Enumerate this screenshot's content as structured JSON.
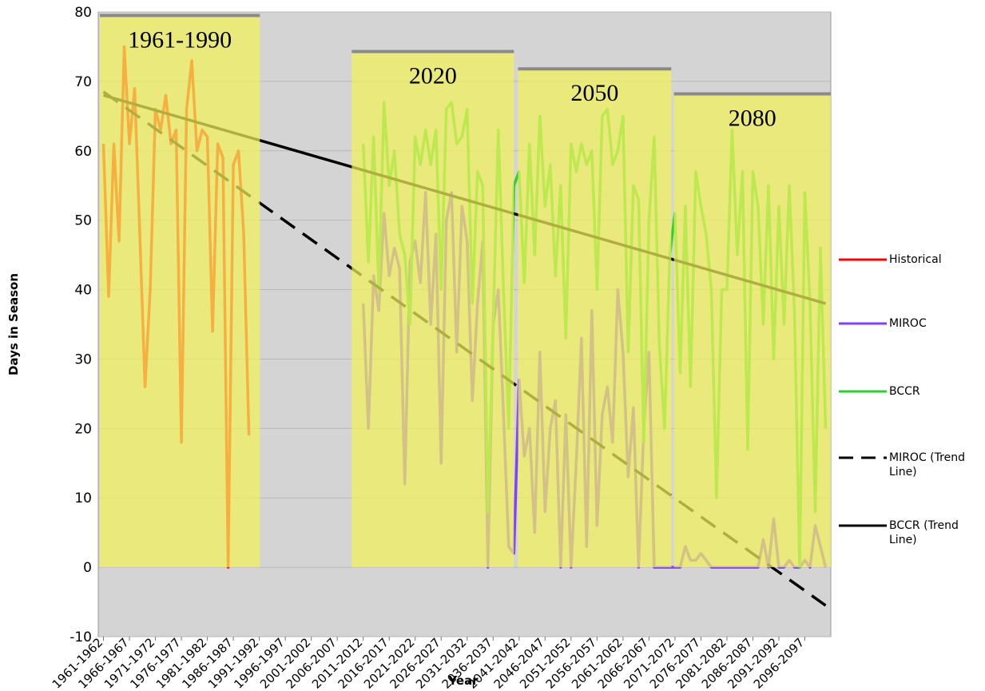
{
  "chart_data": {
    "type": "line",
    "xlabel": "Year",
    "ylabel": "Days in Season",
    "xlim": [
      1960,
      2101
    ],
    "ylim": [
      -10,
      80
    ],
    "yticks": [
      -10,
      0,
      10,
      20,
      30,
      40,
      50,
      60,
      70,
      80
    ],
    "xticks": [
      {
        "value": 1961,
        "label": "1961-1962"
      },
      {
        "value": 1966,
        "label": "1966-1967"
      },
      {
        "value": 1971,
        "label": "1971-1972"
      },
      {
        "value": 1976,
        "label": "1976-1977"
      },
      {
        "value": 1981,
        "label": "1981-1982"
      },
      {
        "value": 1986,
        "label": "1986-1987"
      },
      {
        "value": 1991,
        "label": "1991-1992"
      },
      {
        "value": 1996,
        "label": "1996-1997"
      },
      {
        "value": 2001,
        "label": "2001-2002"
      },
      {
        "value": 2006,
        "label": "2006-2007"
      },
      {
        "value": 2011,
        "label": "2011-2012"
      },
      {
        "value": 2016,
        "label": "2016-2017"
      },
      {
        "value": 2021,
        "label": "2021-2022"
      },
      {
        "value": 2026,
        "label": "2026-2027"
      },
      {
        "value": 2031,
        "label": "2031-2032"
      },
      {
        "value": 2036,
        "label": "2036-2037"
      },
      {
        "value": 2041,
        "label": "2041-2042"
      },
      {
        "value": 2046,
        "label": "2046-2047"
      },
      {
        "value": 2051,
        "label": "2051-2052"
      },
      {
        "value": 2056,
        "label": "2056-2057"
      },
      {
        "value": 2061,
        "label": "2061-2062"
      },
      {
        "value": 2066,
        "label": "2066-2067"
      },
      {
        "value": 2071,
        "label": "2071-2072"
      },
      {
        "value": 2076,
        "label": "2076-2077"
      },
      {
        "value": 2081,
        "label": "2081-2082"
      },
      {
        "value": 2086,
        "label": "2086-2087"
      },
      {
        "value": 2091,
        "label": "2091-2092"
      },
      {
        "value": 2096,
        "label": "2096-2097"
      }
    ],
    "grid": true,
    "legend": "right",
    "periods": [
      {
        "label": "1961-1990",
        "xrange": [
          1960.3,
          1991.1
        ],
        "top": 79.5
      },
      {
        "label": "2020",
        "xrange": [
          2008.8,
          2040
        ],
        "top": 74.3
      },
      {
        "label": "2050",
        "xrange": [
          2040.8,
          2070.3
        ],
        "top": 71.8
      },
      {
        "label": "2080",
        "xrange": [
          2070.8,
          2101
        ],
        "top": 68.2
      }
    ],
    "series": [
      {
        "name": "Historical",
        "color": "#ff0000",
        "dash": false,
        "x": [
          1961,
          1962,
          1963,
          1964,
          1965,
          1966,
          1967,
          1968,
          1969,
          1970,
          1971,
          1972,
          1973,
          1974,
          1975,
          1976,
          1977,
          1978,
          1979,
          1980,
          1981,
          1982,
          1983,
          1984,
          1985,
          1986,
          1987,
          1988,
          1989
        ],
        "values": [
          61,
          39,
          61,
          47,
          75,
          61,
          69,
          48,
          26,
          40,
          66,
          63,
          68,
          61,
          63,
          18,
          66,
          73,
          60,
          63,
          62,
          34,
          61,
          59,
          0,
          58,
          60,
          48,
          19
        ]
      },
      {
        "name": "MIROC",
        "color": "#8040ff",
        "dash": false,
        "x": [
          2011,
          2012,
          2013,
          2014,
          2015,
          2016,
          2017,
          2018,
          2019,
          2020,
          2021,
          2022,
          2023,
          2024,
          2025,
          2026,
          2027,
          2028,
          2029,
          2030,
          2031,
          2032,
          2033,
          2034,
          2035,
          2036,
          2037,
          2038,
          2039,
          2040,
          2041,
          2042,
          2043,
          2044,
          2045,
          2046,
          2047,
          2048,
          2049,
          2050,
          2051,
          2052,
          2053,
          2054,
          2055,
          2056,
          2057,
          2058,
          2059,
          2060,
          2061,
          2062,
          2063,
          2064,
          2065,
          2066,
          2067,
          2068,
          2069,
          2070,
          2071,
          2072,
          2073,
          2074,
          2075,
          2076,
          2077,
          2078,
          2079,
          2080,
          2081,
          2082,
          2083,
          2084,
          2085,
          2086,
          2087,
          2088,
          2089,
          2090,
          2091,
          2092,
          2093,
          2094,
          2095,
          2096,
          2097,
          2098,
          2099,
          2100
        ],
        "values": [
          38,
          20,
          42,
          37,
          51,
          42,
          46,
          43,
          12,
          44,
          47,
          41,
          54,
          35,
          48,
          15,
          50,
          54,
          31,
          52,
          47,
          24,
          38,
          47,
          0,
          35,
          40,
          22,
          3,
          2,
          27,
          16,
          20,
          5,
          31,
          8,
          20,
          24,
          0,
          22,
          0,
          15,
          33,
          3,
          37,
          6,
          22,
          26,
          18,
          40,
          31,
          13,
          23,
          0,
          20,
          31,
          0,
          0,
          0,
          0,
          0,
          0,
          3,
          1,
          1,
          2,
          1,
          0,
          0,
          0,
          0,
          0,
          0,
          0,
          0,
          0,
          0,
          4,
          0,
          7,
          0,
          0,
          1,
          0,
          0,
          1,
          0,
          6,
          3,
          0
        ]
      },
      {
        "name": "BCCR",
        "color": "#33cc33",
        "dash": false,
        "x": [
          2011,
          2012,
          2013,
          2014,
          2015,
          2016,
          2017,
          2018,
          2019,
          2020,
          2021,
          2022,
          2023,
          2024,
          2025,
          2026,
          2027,
          2028,
          2029,
          2030,
          2031,
          2032,
          2033,
          2034,
          2035,
          2036,
          2037,
          2038,
          2039,
          2040,
          2041,
          2042,
          2043,
          2044,
          2045,
          2046,
          2047,
          2048,
          2049,
          2050,
          2051,
          2052,
          2053,
          2054,
          2055,
          2056,
          2057,
          2058,
          2059,
          2060,
          2061,
          2062,
          2063,
          2064,
          2065,
          2066,
          2067,
          2068,
          2069,
          2070,
          2071,
          2072,
          2073,
          2074,
          2075,
          2076,
          2077,
          2078,
          2079,
          2080,
          2081,
          2082,
          2083,
          2084,
          2085,
          2086,
          2087,
          2088,
          2089,
          2090,
          2091,
          2092,
          2093,
          2094,
          2095,
          2096,
          2097,
          2098,
          2099,
          2100
        ],
        "values": [
          61,
          44,
          62,
          40,
          67,
          55,
          60,
          48,
          45,
          35,
          62,
          58,
          63,
          58,
          63,
          40,
          66,
          67,
          61,
          62,
          66,
          38,
          57,
          55,
          8,
          35,
          63,
          40,
          20,
          55,
          57,
          41,
          61,
          45,
          65,
          52,
          58,
          42,
          55,
          33,
          61,
          57,
          61,
          58,
          60,
          40,
          65,
          66,
          58,
          60,
          65,
          31,
          55,
          53,
          18,
          50,
          62,
          32,
          20,
          45,
          51,
          28,
          52,
          26,
          57,
          52,
          48,
          40,
          10,
          40,
          40,
          63,
          45,
          57,
          17,
          57,
          52,
          35,
          55,
          30,
          52,
          35,
          55,
          37,
          0,
          54,
          38,
          8,
          46,
          20
        ]
      },
      {
        "name": "MIROC (Trend Line)",
        "color": "#000000",
        "dash": true,
        "x": [
          1961,
          2100
        ],
        "values": [
          68.5,
          -5.5
        ]
      },
      {
        "name": "BCCR (Trend Line)",
        "color": "#000000",
        "dash": false,
        "x": [
          1961,
          2100
        ],
        "values": [
          68,
          38
        ]
      }
    ]
  }
}
